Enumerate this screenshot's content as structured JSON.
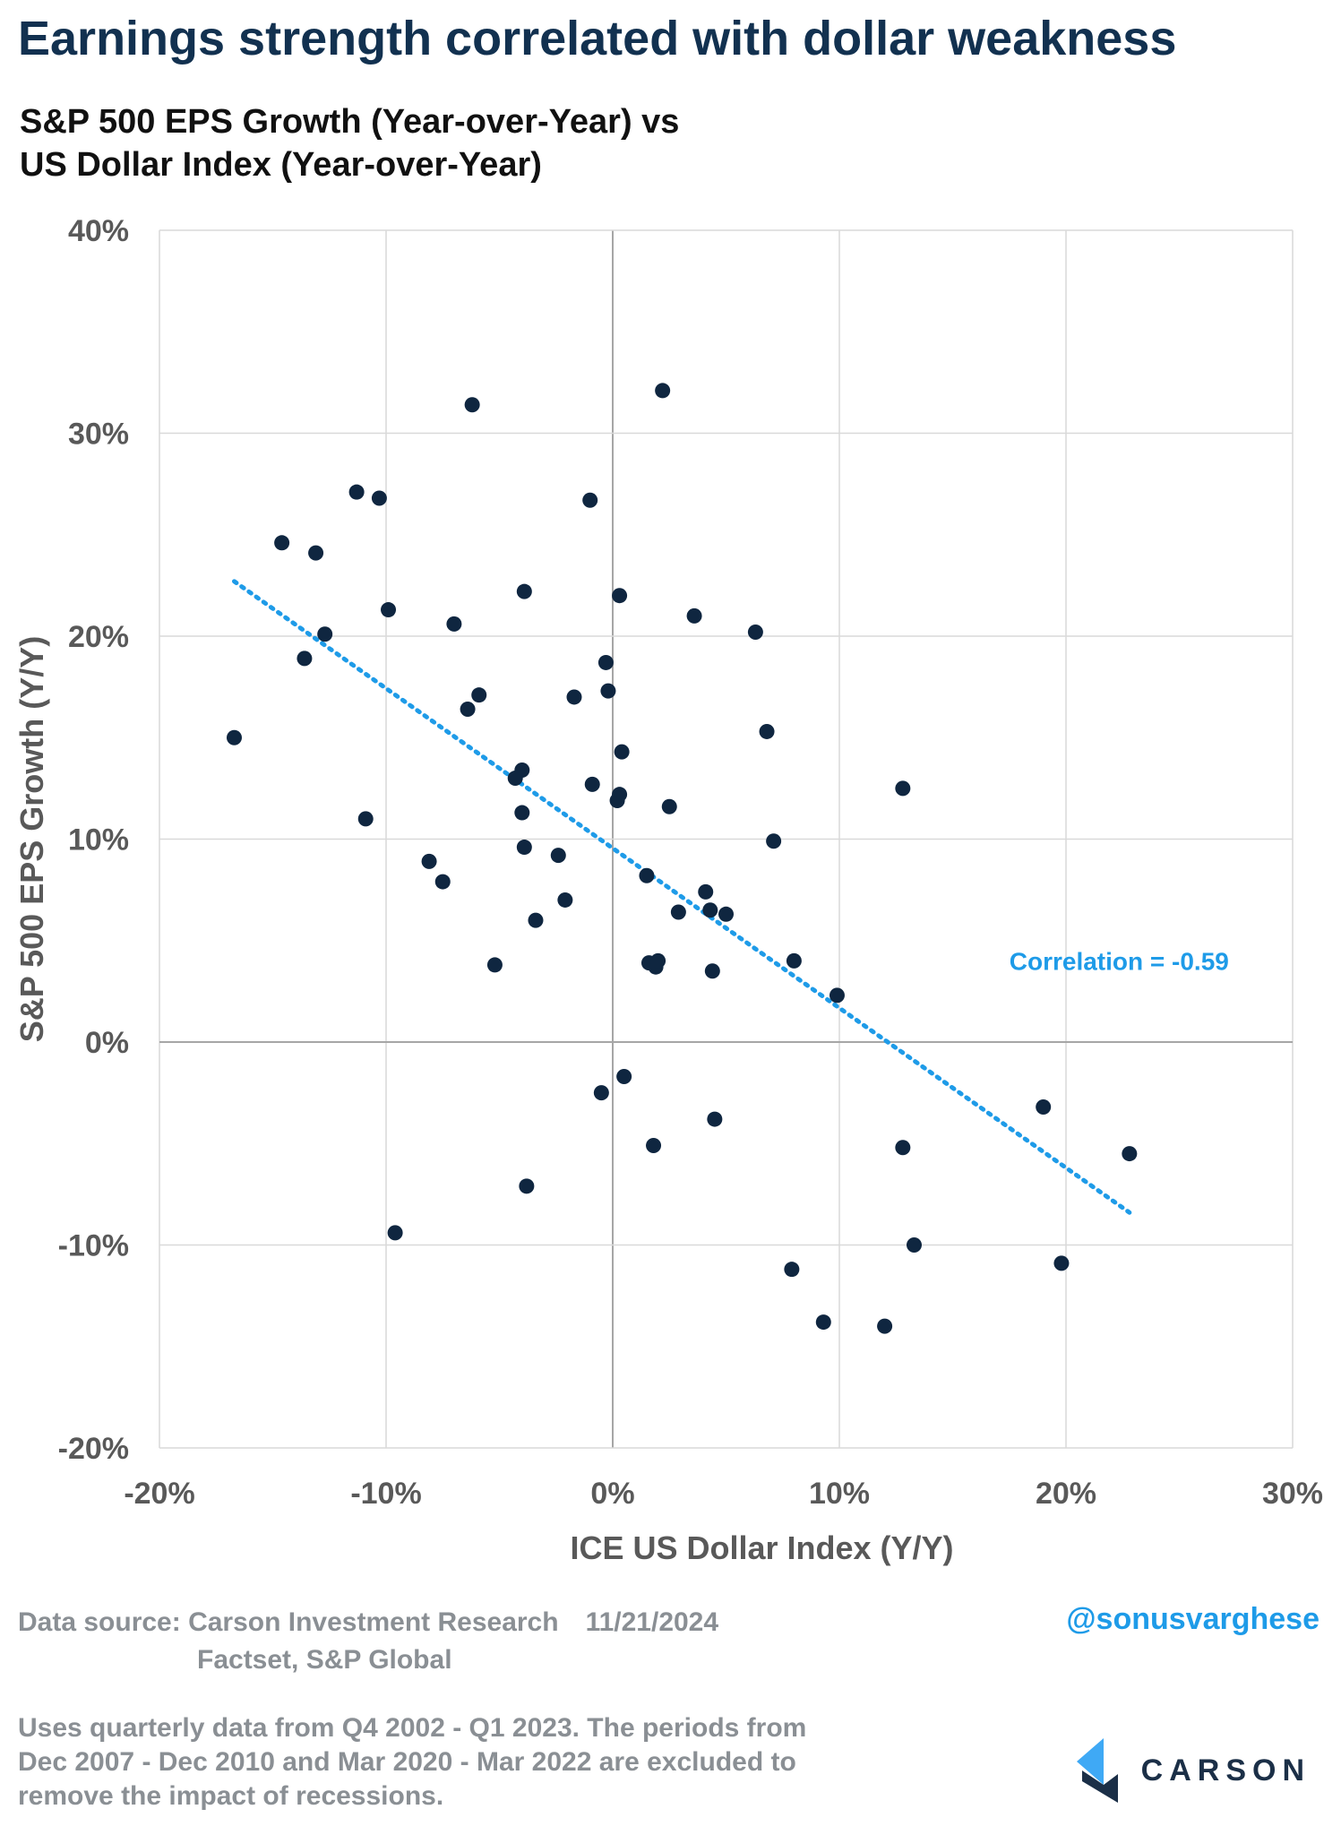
{
  "headline": "Earnings strength correlated with dollar weakness",
  "subtitle_line1": "S&P 500 EPS Growth (Year-over-Year) vs",
  "subtitle_line2": "US Dollar Index (Year-over-Year)",
  "footer": {
    "source_label": "Data source: Carson Investment Research",
    "date": "11/21/2024",
    "source_line2": "Factset, S&P Global",
    "handle": "@sonusvarghese",
    "note_line1": "Uses quarterly data from Q4 2002 - Q1 2023. The periods from",
    "note_line2": "Dec 2007 - Dec 2010 and Mar 2020 - Mar 2022 are excluded to",
    "note_line3": "remove the impact of recessions.",
    "logo_text": "CARSON"
  },
  "colors": {
    "headline": "#123150",
    "point": "#0f2640",
    "trend": "#1e9be8",
    "grid": "#d9d9d9",
    "axis_text": "#595959",
    "logo_light": "#3fa9f5",
    "logo_dark": "#1b2f47"
  },
  "chart_data": {
    "type": "scatter",
    "title": "S&P 500 EPS Growth (Year-over-Year) vs US Dollar Index (Year-over-Year)",
    "xlabel": "ICE US Dollar Index (Y/Y)",
    "ylabel": "S&P 500 EPS Growth (Y/Y)",
    "xlim": [
      -20,
      30
    ],
    "ylim": [
      -20,
      40
    ],
    "xticks": [
      -20,
      -10,
      0,
      10,
      20,
      30
    ],
    "yticks": [
      -20,
      -10,
      0,
      10,
      20,
      30,
      40
    ],
    "xtick_labels": [
      "-20%",
      "-10%",
      "0%",
      "10%",
      "20%",
      "30%"
    ],
    "ytick_labels": [
      "-20%",
      "-10%",
      "0%",
      "10%",
      "20%",
      "30%",
      "40%"
    ],
    "grid": true,
    "annotation": "Correlation = -0.59",
    "annotation_at": [
      17.5,
      4
    ],
    "trendline": {
      "style": "dotted",
      "from": [
        -16.7,
        22.7
      ],
      "to": [
        22.8,
        -8.4
      ]
    },
    "points": [
      [
        -16.7,
        15.0
      ],
      [
        -14.6,
        24.6
      ],
      [
        -13.6,
        18.9
      ],
      [
        -13.1,
        24.1
      ],
      [
        -12.7,
        20.1
      ],
      [
        -11.3,
        27.1
      ],
      [
        -10.9,
        11.0
      ],
      [
        -10.3,
        26.8
      ],
      [
        -9.9,
        21.3
      ],
      [
        -9.6,
        -9.4
      ],
      [
        -8.1,
        8.9
      ],
      [
        -7.5,
        7.9
      ],
      [
        -7.0,
        20.6
      ],
      [
        -6.2,
        31.4
      ],
      [
        -6.4,
        16.4
      ],
      [
        -5.9,
        17.1
      ],
      [
        -5.2,
        3.8
      ],
      [
        -4.3,
        13.0
      ],
      [
        -4.0,
        13.4
      ],
      [
        -4.0,
        11.3
      ],
      [
        -3.9,
        22.2
      ],
      [
        -3.9,
        9.6
      ],
      [
        -3.8,
        -7.1
      ],
      [
        -3.4,
        6.0
      ],
      [
        -2.4,
        9.2
      ],
      [
        -2.1,
        7.0
      ],
      [
        -1.7,
        17.0
      ],
      [
        -1.0,
        26.7
      ],
      [
        -0.9,
        12.7
      ],
      [
        -0.5,
        -2.5
      ],
      [
        -0.3,
        18.7
      ],
      [
        -0.2,
        17.3
      ],
      [
        0.2,
        11.9
      ],
      [
        0.3,
        12.2
      ],
      [
        0.3,
        22.0
      ],
      [
        0.4,
        14.3
      ],
      [
        0.5,
        -1.7
      ],
      [
        1.5,
        8.2
      ],
      [
        1.6,
        3.9
      ],
      [
        1.8,
        -5.1
      ],
      [
        1.9,
        3.7
      ],
      [
        2.0,
        4.0
      ],
      [
        2.2,
        32.1
      ],
      [
        2.5,
        11.6
      ],
      [
        2.9,
        6.4
      ],
      [
        3.6,
        21.0
      ],
      [
        4.1,
        7.4
      ],
      [
        4.3,
        6.5
      ],
      [
        4.4,
        3.5
      ],
      [
        4.5,
        -3.8
      ],
      [
        5.0,
        6.3
      ],
      [
        6.3,
        20.2
      ],
      [
        6.8,
        15.3
      ],
      [
        7.1,
        9.9
      ],
      [
        7.9,
        -11.2
      ],
      [
        8.0,
        4.0
      ],
      [
        9.3,
        -13.8
      ],
      [
        9.9,
        2.3
      ],
      [
        12.0,
        -14.0
      ],
      [
        12.8,
        12.5
      ],
      [
        12.8,
        -5.2
      ],
      [
        13.3,
        -10.0
      ],
      [
        19.0,
        -3.2
      ],
      [
        19.8,
        -10.9
      ],
      [
        22.8,
        -5.5
      ]
    ]
  }
}
